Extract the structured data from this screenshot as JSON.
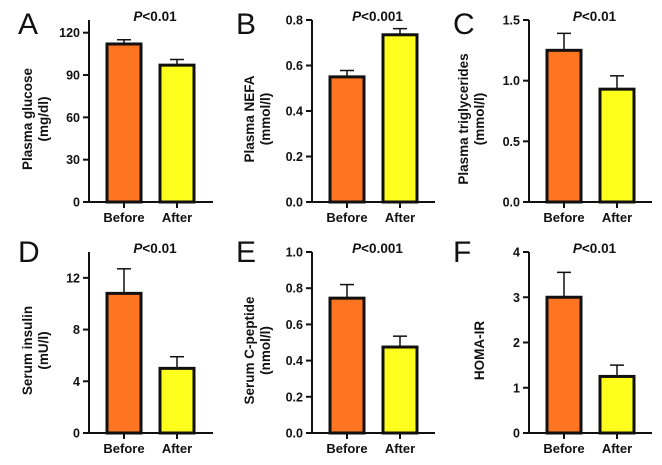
{
  "chart_data": [
    {
      "type": "bar",
      "panel": "A",
      "title": "",
      "annotation": {
        "italic": "P",
        "text": "<0.01"
      },
      "ylabel": [
        "Plasma glucose",
        "(mg/dl)"
      ],
      "xlabel": "",
      "categories": [
        "Before",
        "After"
      ],
      "values": [
        112,
        97
      ],
      "error_upper": [
        115,
        101
      ],
      "ylim": [
        0,
        129
      ],
      "yticks": [
        0,
        30,
        60,
        90,
        120
      ],
      "ytick_labels": [
        "0",
        "30",
        "60",
        "90",
        "120"
      ],
      "grid": false,
      "colors": [
        "#FF7420",
        "#FFFF1E"
      ]
    },
    {
      "type": "bar",
      "panel": "B",
      "title": "",
      "annotation": {
        "italic": "P",
        "text": "<0.001"
      },
      "ylabel": [
        "Plasma NEFA",
        "(mmol/l)"
      ],
      "xlabel": "",
      "categories": [
        "Before",
        "After"
      ],
      "values": [
        0.55,
        0.735
      ],
      "error_upper": [
        0.578,
        0.762
      ],
      "ylim": [
        0,
        0.8
      ],
      "yticks": [
        0,
        0.2,
        0.4,
        0.6,
        0.8
      ],
      "ytick_labels": [
        "0.0",
        "0.2",
        "0.4",
        "0.6",
        "0.8"
      ],
      "grid": false,
      "colors": [
        "#FF7420",
        "#FFFF1E"
      ]
    },
    {
      "type": "bar",
      "panel": "C",
      "title": "",
      "annotation": {
        "italic": "P",
        "text": "<0.01"
      },
      "ylabel": [
        "Plasma triglycerides",
        "(mmol/l)"
      ],
      "xlabel": "",
      "categories": [
        "Before",
        "After"
      ],
      "values": [
        1.25,
        0.93
      ],
      "error_upper": [
        1.39,
        1.04
      ],
      "ylim": [
        0,
        1.5
      ],
      "yticks": [
        0,
        0.5,
        1.0,
        1.5
      ],
      "ytick_labels": [
        "0.0",
        "0.5",
        "1.0",
        "1.5"
      ],
      "grid": false,
      "colors": [
        "#FF7420",
        "#FFFF1E"
      ]
    },
    {
      "type": "bar",
      "panel": "D",
      "title": "",
      "annotation": {
        "italic": "P",
        "text": "<0.01"
      },
      "ylabel": [
        "Serum insulin",
        "(mU/l)"
      ],
      "xlabel": "",
      "categories": [
        "Before",
        "After"
      ],
      "values": [
        10.8,
        5.0
      ],
      "error_upper": [
        12.7,
        5.9
      ],
      "ylim": [
        0,
        14
      ],
      "yticks": [
        0,
        4,
        8,
        12
      ],
      "ytick_labels": [
        "0",
        "4",
        "8",
        "12"
      ],
      "grid": false,
      "colors": [
        "#FF7420",
        "#FFFF1E"
      ]
    },
    {
      "type": "bar",
      "panel": "E",
      "title": "",
      "annotation": {
        "italic": "P",
        "text": "<0.001"
      },
      "ylabel": [
        "Serum C-peptide",
        "(nmol/l)"
      ],
      "xlabel": "",
      "categories": [
        "Before",
        "After"
      ],
      "values": [
        0.745,
        0.475
      ],
      "error_upper": [
        0.82,
        0.535
      ],
      "ylim": [
        0,
        1.0
      ],
      "yticks": [
        0,
        0.2,
        0.4,
        0.6,
        0.8,
        1.0
      ],
      "ytick_labels": [
        "0.0",
        "0.2",
        "0.4",
        "0.6",
        "0.8",
        "1.0"
      ],
      "grid": false,
      "colors": [
        "#FF7420",
        "#FFFF1E"
      ]
    },
    {
      "type": "bar",
      "panel": "F",
      "title": "",
      "annotation": {
        "italic": "P",
        "text": "<0.01"
      },
      "ylabel": [
        "HOMA-IR"
      ],
      "xlabel": "",
      "categories": [
        "Before",
        "After"
      ],
      "values": [
        3.0,
        1.25
      ],
      "error_upper": [
        3.55,
        1.5
      ],
      "ylim": [
        0,
        4
      ],
      "yticks": [
        0,
        1,
        2,
        3,
        4
      ],
      "ytick_labels": [
        "0",
        "1",
        "2",
        "3",
        "4"
      ],
      "grid": false,
      "colors": [
        "#FF7420",
        "#FFFF1E"
      ]
    }
  ]
}
